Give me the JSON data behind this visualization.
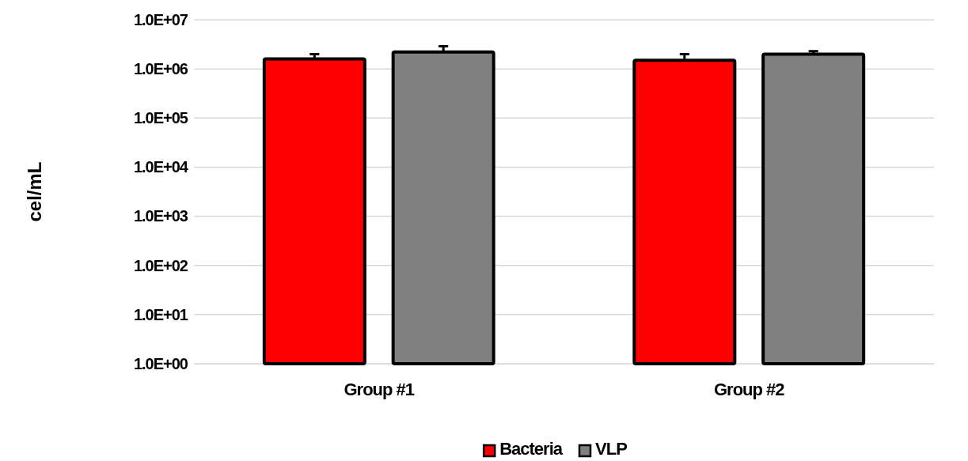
{
  "chart_data": {
    "type": "bar",
    "ylabel": "cel/mL",
    "categories": [
      "Group #1",
      "Group #2"
    ],
    "series": [
      {
        "name": "Bacteria",
        "color": "#ff0000",
        "values": [
          1600000,
          1500000
        ],
        "errors": [
          [
            1600000,
            2000000
          ],
          [
            1500000,
            2000000
          ]
        ]
      },
      {
        "name": "VLP",
        "color": "#808080",
        "values": [
          2200000,
          2000000
        ],
        "errors": [
          [
            2200000,
            2900000
          ],
          [
            2000000,
            2300000
          ]
        ]
      }
    ],
    "log": true,
    "ylim": [
      1,
      10000000
    ],
    "yticks": [
      {
        "value": 1,
        "label": "1.0E+00"
      },
      {
        "value": 10,
        "label": "1.0E+01"
      },
      {
        "value": 100,
        "label": "1.0E+02"
      },
      {
        "value": 1000,
        "label": "1.0E+03"
      },
      {
        "value": 10000,
        "label": "1.0E+04"
      },
      {
        "value": 100000,
        "label": "1.0E+05"
      },
      {
        "value": 1000000,
        "label": "1.0E+06"
      },
      {
        "value": 10000000,
        "label": "1.0E+07"
      }
    ],
    "grid": "y",
    "legend": "bottom"
  }
}
